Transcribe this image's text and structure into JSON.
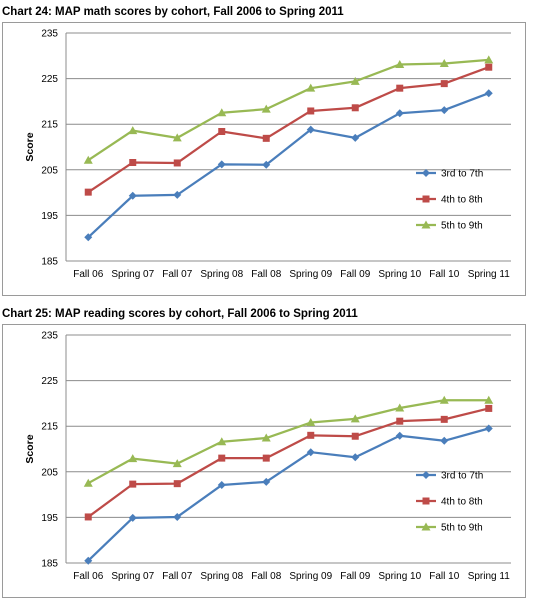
{
  "chart_data": [
    {
      "type": "line",
      "title": "Chart 24: MAP math scores by cohort, Fall 2006 to Spring 2011",
      "ylabel": "Score",
      "xlabel": "",
      "ylim": [
        185,
        235
      ],
      "yticks": [
        "185",
        "195",
        "205",
        "215",
        "225",
        "235"
      ],
      "grid": true,
      "legend": "right",
      "categories": [
        "Fall 06",
        "Spring 07",
        "Fall 07",
        "Spring 08",
        "Fall 08",
        "Spring 09",
        "Fall 09",
        "Spring 10",
        "Fall 10",
        "Spring 11"
      ],
      "series": [
        {
          "name": "3rd to 7th",
          "color": "#4a7ebb",
          "marker": "diamond",
          "values": [
            190.2,
            199.3,
            199.5,
            206.2,
            206.1,
            213.8,
            212.0,
            217.4,
            218.1,
            221.8
          ]
        },
        {
          "name": "4th to 8th",
          "color": "#be4b48",
          "marker": "square",
          "values": [
            200.1,
            206.6,
            206.5,
            213.4,
            211.9,
            217.9,
            218.6,
            222.9,
            223.9,
            227.5
          ]
        },
        {
          "name": "5th to 9th",
          "color": "#98b954",
          "marker": "triangle",
          "values": [
            207.1,
            213.6,
            212.0,
            217.5,
            218.3,
            222.9,
            224.4,
            228.1,
            228.3,
            229.1
          ]
        }
      ]
    },
    {
      "type": "line",
      "title": "Chart 25: MAP reading scores by cohort, Fall 2006 to Spring 2011",
      "ylabel": "Score",
      "xlabel": "",
      "ylim": [
        185,
        235
      ],
      "yticks": [
        "185",
        "195",
        "205",
        "215",
        "225",
        "235"
      ],
      "grid": true,
      "legend": "right",
      "categories": [
        "Fall 06",
        "Spring 07",
        "Fall 07",
        "Spring 08",
        "Fall 08",
        "Spring 09",
        "Fall 09",
        "Spring 10",
        "Fall 10",
        "Spring 11"
      ],
      "series": [
        {
          "name": "3rd to 7th",
          "color": "#4a7ebb",
          "marker": "diamond",
          "values": [
            185.5,
            194.9,
            195.1,
            202.1,
            202.8,
            209.3,
            208.2,
            212.9,
            211.8,
            214.5
          ]
        },
        {
          "name": "4th to 8th",
          "color": "#be4b48",
          "marker": "square",
          "values": [
            195.1,
            202.3,
            202.4,
            208.0,
            208.0,
            213.0,
            212.8,
            216.1,
            216.5,
            218.9
          ]
        },
        {
          "name": "5th to 9th",
          "color": "#98b954",
          "marker": "triangle",
          "values": [
            202.5,
            207.9,
            206.8,
            211.6,
            212.4,
            215.8,
            216.6,
            219.0,
            220.7,
            220.7
          ]
        }
      ]
    }
  ]
}
